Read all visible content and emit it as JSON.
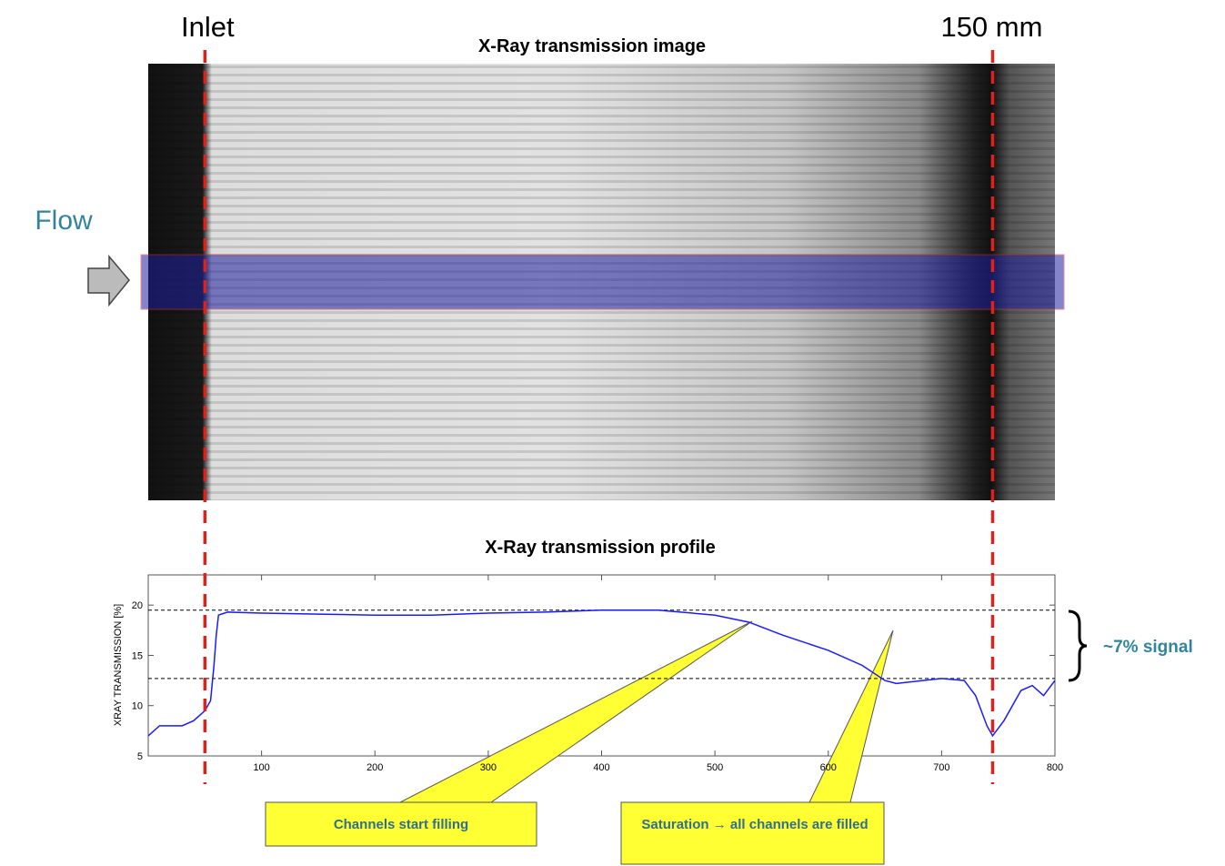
{
  "chart_data": {
    "type": "line",
    "image_title": "X-Ray transmission image",
    "flow_label": "Flow",
    "title": "X-Ray transmission profile",
    "ylabel": "XRAY TRANSMISSION [%]",
    "x": [
      0,
      10,
      20,
      30,
      40,
      50,
      55,
      58,
      60,
      62,
      70,
      100,
      150,
      200,
      250,
      300,
      350,
      400,
      450,
      500,
      530,
      560,
      600,
      630,
      650,
      660,
      700,
      720,
      730,
      740,
      745,
      755,
      770,
      780,
      790,
      800
    ],
    "values": [
      7,
      8,
      8,
      8,
      8.5,
      9.5,
      10.5,
      14,
      17,
      19,
      19.3,
      19.2,
      19.1,
      19,
      19,
      19.2,
      19.3,
      19.5,
      19.5,
      19,
      18.3,
      17,
      15.5,
      14,
      12.5,
      12.2,
      12.7,
      12.5,
      11,
      8,
      7,
      8.5,
      11.5,
      12,
      11,
      12.5
    ],
    "color": "#1a1aff",
    "xlim": [
      0,
      800
    ],
    "xticks": [
      100,
      200,
      300,
      400,
      500,
      600,
      700,
      800
    ],
    "ylim": [
      5,
      23
    ],
    "yticks": [
      5,
      10,
      15,
      20
    ],
    "reference_lines": [
      19.5,
      12.7
    ],
    "markers": [
      {
        "label": "Inlet",
        "x": 50
      },
      {
        "label": "150 mm",
        "x": 745
      }
    ],
    "annotations": {
      "signal": "~7% signal",
      "start": "Channels start filling",
      "saturation": "Saturation → all channels are filled"
    }
  }
}
